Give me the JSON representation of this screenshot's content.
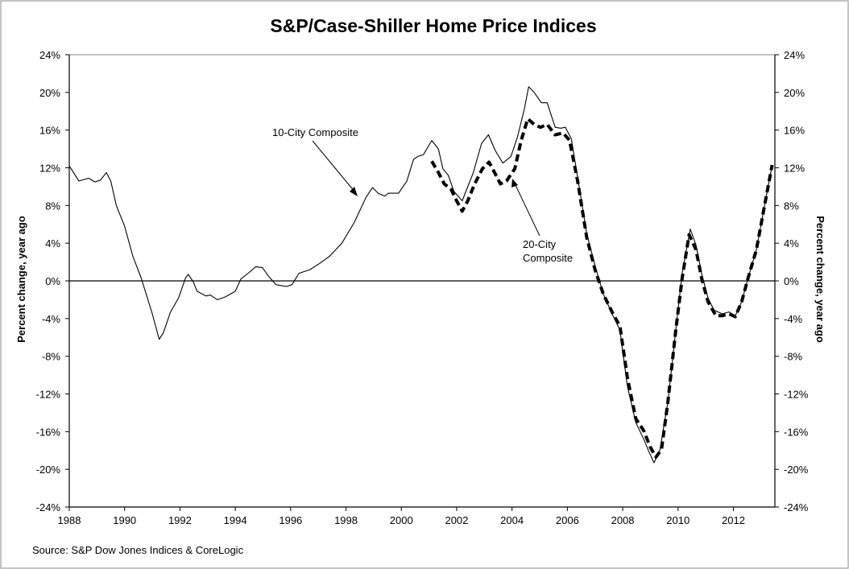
{
  "chart_data": {
    "type": "line",
    "title": "S&P/Case-Shiller Home Price Indices",
    "ylabel": "Percent change, year ago",
    "ylabel_right": "Percent change, year ago",
    "source": "Source: S&P Dow Jones Indices & CoreLogic",
    "xlim": [
      1988,
      2013.5
    ],
    "ylim": [
      -24,
      24
    ],
    "x_ticks": [
      "1988",
      "1990",
      "1992",
      "1994",
      "1996",
      "1998",
      "2000",
      "2002",
      "2004",
      "2006",
      "2008",
      "2010",
      "2012"
    ],
    "y_ticks": [
      "24%",
      "20%",
      "16%",
      "12%",
      "8%",
      "4%",
      "0%",
      "-4%",
      "-8%",
      "-12%",
      "-16%",
      "-20%",
      "-24%"
    ],
    "grid": false,
    "legend": "none (inline annotations)",
    "annotations": [
      {
        "text": "10-City Composite"
      },
      {
        "text_lines": [
          "20-City",
          "Composite"
        ]
      }
    ],
    "series": [
      {
        "name": "10-City Composite",
        "style": "solid thin",
        "color": "#000000",
        "x": [
          1988.0,
          1988.35,
          1988.7,
          1988.93,
          1989.13,
          1989.34,
          1989.5,
          1989.7,
          1990.0,
          1990.3,
          1990.6,
          1991.0,
          1991.25,
          1991.4,
          1991.66,
          1991.95,
          1992.2,
          1992.3,
          1992.48,
          1992.62,
          1992.94,
          1993.1,
          1993.35,
          1993.64,
          1994.0,
          1994.2,
          1994.5,
          1994.74,
          1994.98,
          1995.2,
          1995.47,
          1995.85,
          1996.05,
          1996.3,
          1996.7,
          1997.07,
          1997.4,
          1997.85,
          1998.3,
          1998.73,
          1998.96,
          1999.16,
          1999.4,
          1999.54,
          1999.9,
          2000.2,
          2000.44,
          2000.6,
          2000.8,
          2001.1,
          2001.34,
          2001.5,
          2001.7,
          2001.9,
          2002.2,
          2002.6,
          2002.9,
          2003.15,
          2003.4,
          2003.67,
          2003.96,
          2004.2,
          2004.45,
          2004.6,
          2004.8,
          2005.06,
          2005.27,
          2005.56,
          2005.76,
          2005.93,
          2006.14,
          2006.37,
          2006.7,
          2007.0,
          2007.3,
          2007.65,
          2007.9,
          2008.17,
          2008.47,
          2008.76,
          2008.93,
          2009.13,
          2009.34,
          2009.63,
          2009.92,
          2010.15,
          2010.44,
          2010.65,
          2010.85,
          2011.08,
          2011.3,
          2011.6,
          2011.84,
          2012.07,
          2012.3,
          2012.53,
          2012.83,
          2013.1,
          2013.4
        ],
        "y": [
          12.2,
          10.6,
          10.9,
          10.5,
          10.7,
          11.5,
          10.6,
          8.0,
          5.8,
          2.6,
          0.3,
          -3.5,
          -6.2,
          -5.5,
          -3.3,
          -1.8,
          0.3,
          0.7,
          -0.1,
          -1.1,
          -1.6,
          -1.5,
          -2.0,
          -1.7,
          -1.1,
          0.2,
          0.9,
          1.5,
          1.4,
          0.5,
          -0.4,
          -0.6,
          -0.4,
          0.8,
          1.2,
          1.9,
          2.6,
          4.0,
          6.2,
          8.9,
          9.9,
          9.3,
          9.0,
          9.3,
          9.3,
          10.6,
          12.9,
          13.2,
          13.4,
          14.9,
          14.0,
          11.9,
          11.2,
          9.5,
          8.5,
          11.5,
          14.6,
          15.5,
          13.8,
          12.5,
          13.2,
          15.3,
          18.3,
          20.6,
          20.0,
          18.9,
          18.9,
          16.3,
          16.2,
          16.3,
          15.1,
          11.0,
          5.0,
          1.6,
          -1.4,
          -3.7,
          -5.2,
          -11.2,
          -15.0,
          -16.8,
          -18.0,
          -19.3,
          -18.0,
          -12.9,
          -5.2,
          0.8,
          5.5,
          3.8,
          0.8,
          -1.8,
          -3.1,
          -3.5,
          -3.3,
          -3.7,
          -2.2,
          0.3,
          3.3,
          7.6,
          12.3
        ]
      },
      {
        "name": "20-City Composite",
        "style": "dashed thick",
        "color": "#000000",
        "x": [
          2001.1,
          2001.34,
          2001.55,
          2001.8,
          2002.0,
          2002.2,
          2002.4,
          2002.65,
          2002.93,
          2003.17,
          2003.37,
          2003.58,
          2003.8,
          2004.1,
          2004.33,
          2004.57,
          2004.8,
          2005.03,
          2005.27,
          2005.56,
          2005.85,
          2006.08,
          2006.37,
          2006.7,
          2007.0,
          2007.3,
          2007.65,
          2007.9,
          2008.17,
          2008.47,
          2008.76,
          2008.99,
          2009.2,
          2009.4,
          2009.63,
          2009.92,
          2010.15,
          2010.4,
          2010.65,
          2010.85,
          2011.08,
          2011.37,
          2011.6,
          2011.84,
          2012.07,
          2012.3,
          2012.53,
          2012.83,
          2013.1,
          2013.4
        ],
        "y": [
          12.7,
          11.5,
          10.3,
          9.7,
          8.5,
          7.4,
          8.5,
          10.3,
          11.9,
          12.6,
          11.5,
          10.3,
          10.6,
          11.9,
          14.9,
          17.2,
          16.6,
          16.3,
          16.6,
          15.5,
          15.7,
          14.9,
          10.6,
          4.6,
          1.2,
          -1.4,
          -3.5,
          -4.8,
          -10.3,
          -14.6,
          -15.9,
          -17.6,
          -18.7,
          -17.9,
          -12.9,
          -5.2,
          0.3,
          4.9,
          3.3,
          0.3,
          -2.2,
          -3.7,
          -3.7,
          -3.5,
          -3.8,
          -2.2,
          0.3,
          3.3,
          7.6,
          12.3
        ]
      }
    ]
  }
}
